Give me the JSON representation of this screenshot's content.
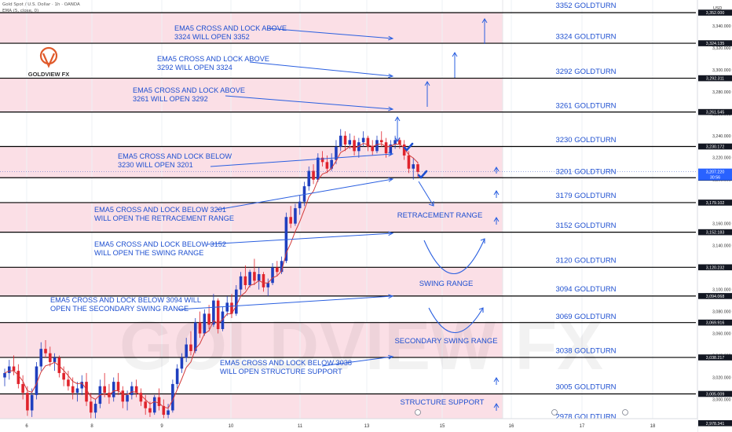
{
  "header": {
    "symbol": "Gold Spot / U.S. Dollar · 1h · OANDA",
    "indicator": "EMA (5, close, 0)"
  },
  "logo": {
    "text": "GOLDVIEW FX"
  },
  "watermark": "GOLDVIEW FX",
  "currency": "USD",
  "chart_data": {
    "type": "candlestick",
    "instrument": "Gold Spot / U.S. Dollar",
    "timeframe": "1h",
    "ylim": [
      2975,
      3355
    ],
    "x_ticks": [
      {
        "label": "6",
        "t": 0
      },
      {
        "label": "8",
        "t": 1
      },
      {
        "label": "9",
        "t": 2
      },
      {
        "label": "10",
        "t": 3
      },
      {
        "label": "11",
        "t": 4
      },
      {
        "label": "13",
        "t": 5
      },
      {
        "label": "15",
        "t": 6
      },
      {
        "label": "16",
        "t": 7
      },
      {
        "label": "17",
        "t": 8
      },
      {
        "label": "18",
        "t": 9
      }
    ],
    "y_ticks": [
      3340,
      3320,
      3300,
      3280,
      3260,
      3240,
      3220,
      3200,
      3180,
      3160,
      3140,
      3120,
      3100,
      3080,
      3060,
      3040,
      3020,
      3000
    ],
    "price_lines": [
      {
        "price": 3352.0,
        "label": "3,352.000"
      },
      {
        "price": 3324.135,
        "label": "3,324.135"
      },
      {
        "price": 3292.311,
        "label": "3,292.311"
      },
      {
        "price": 3261.545,
        "label": "3,261.545"
      },
      {
        "price": 3230.172,
        "label": "3,230.172"
      },
      {
        "price": 3201.744,
        "label": "3,201.744"
      },
      {
        "price": 3179.102,
        "label": "3,179.102"
      },
      {
        "price": 3152.183,
        "label": "3,152.183"
      },
      {
        "price": 3120.232,
        "label": "3,120.232"
      },
      {
        "price": 3094.068,
        "label": "3,094.068"
      },
      {
        "price": 3069.916,
        "label": "3,069.916"
      },
      {
        "price": 3038.217,
        "label": "3,038.217"
      },
      {
        "price": 3005.009,
        "label": "3,005.009"
      },
      {
        "price": 2978.341,
        "label": "2,978.341"
      }
    ],
    "current_price": {
      "price": 3207.22,
      "label": "3,207.220",
      "countdown": "30:56"
    },
    "pink_zones": [
      [
        3324.135,
        3352.0
      ],
      [
        3261.545,
        3292.311
      ],
      [
        3201.744,
        3230.172
      ],
      [
        3152.183,
        3179.102
      ],
      [
        3094.068,
        3120.232
      ],
      [
        3038.217,
        3069.916
      ],
      [
        2978.341,
        3005.009
      ]
    ],
    "goldturn_levels": [
      {
        "price": 3352,
        "label": "3352 GOLDTURN"
      },
      {
        "price": 3324,
        "label": "3324 GOLDTURN"
      },
      {
        "price": 3292,
        "label": "3292 GOLDTURN"
      },
      {
        "price": 3261,
        "label": "3261 GOLDTURN"
      },
      {
        "price": 3230,
        "label": "3230 GOLDTURN"
      },
      {
        "price": 3201,
        "label": "3201 GOLDTURN"
      },
      {
        "price": 3179,
        "label": "3179 GOLDTURN"
      },
      {
        "price": 3152,
        "label": "3152 GOLDTURN"
      },
      {
        "price": 3120,
        "label": "3120 GOLDTURN"
      },
      {
        "price": 3094,
        "label": "3094 GOLDTURN"
      },
      {
        "price": 3069,
        "label": "3069 GOLDTURN"
      },
      {
        "price": 3038,
        "label": "3038 GOLDTURN"
      },
      {
        "price": 3005,
        "label": "3005 GOLDTURN"
      },
      {
        "price": 2978,
        "label": "2978 GOLDTURN"
      }
    ],
    "annotations": [
      {
        "lines": [
          "EMA5 CROSS AND LOCK ABOVE",
          "3324 WILL OPEN 3352"
        ]
      },
      {
        "lines": [
          "EMA5 CROSS AND LOCK ABOVE",
          "3292 WILL OPEN 3324"
        ]
      },
      {
        "lines": [
          "EMA5 CROSS AND LOCK ABOVE",
          "3261 WILL OPEN 3292"
        ]
      },
      {
        "lines": [
          "EMA5 CROSS AND LOCK BELOW",
          "3230 WILL OPEN 3201"
        ]
      },
      {
        "lines": [
          "EMA5 CROSS AND LOCK BELOW 3201",
          "WILL OPEN THE RETRACEMENT RANGE"
        ]
      },
      {
        "lines": [
          "EMA5 CROSS AND LOCK BELOW 3152",
          "WILL OPEN THE SWING RANGE"
        ]
      },
      {
        "lines": [
          "EMA5 CROSS AND LOCK BELOW 3094 WILL",
          "OPEN THE SECONDARY SWING RANGE"
        ]
      },
      {
        "lines": [
          "EMA5 CROSS AND LOCK BELOW 3038",
          "WILL OPEN STRUCTURE SUPPORT"
        ]
      }
    ],
    "range_labels": [
      "RETRACEMENT RANGE",
      "SWING RANGE",
      "SECONDARY SWING RANGE",
      "STRUCTURE SUPPORT"
    ],
    "candles": [
      [
        3020,
        3028,
        3012,
        3024
      ],
      [
        3024,
        3036,
        3018,
        3030
      ],
      [
        3030,
        3040,
        3022,
        3026
      ],
      [
        3026,
        3032,
        3010,
        3014
      ],
      [
        3014,
        3022,
        3000,
        3006
      ],
      [
        3006,
        3012,
        2985,
        2990
      ],
      [
        2990,
        3010,
        2984,
        3004
      ],
      [
        3004,
        3034,
        3000,
        3030
      ],
      [
        3030,
        3052,
        3026,
        3046
      ],
      [
        3046,
        3054,
        3038,
        3042
      ],
      [
        3042,
        3048,
        3030,
        3034
      ],
      [
        3034,
        3042,
        3026,
        3038
      ],
      [
        3038,
        3040,
        3020,
        3024
      ],
      [
        3024,
        3030,
        3012,
        3018
      ],
      [
        3018,
        3026,
        3008,
        3012
      ],
      [
        3012,
        3020,
        3000,
        3006
      ],
      [
        3006,
        3016,
        2998,
        3010
      ],
      [
        3010,
        3022,
        3004,
        3016
      ],
      [
        3016,
        3024,
        2994,
        2998
      ],
      [
        2998,
        3006,
        2982,
        2988
      ],
      [
        2988,
        3000,
        2980,
        2996
      ],
      [
        2996,
        3018,
        2992,
        3012
      ],
      [
        3012,
        3024,
        3002,
        3006
      ],
      [
        3006,
        3014,
        2996,
        3002
      ],
      [
        3002,
        3020,
        2998,
        3016
      ],
      [
        3016,
        3024,
        3004,
        3008
      ],
      [
        3008,
        3012,
        2992,
        2998
      ],
      [
        2998,
        3008,
        2990,
        3004
      ],
      [
        3004,
        3016,
        3000,
        3012
      ],
      [
        3012,
        3018,
        3002,
        3006
      ],
      [
        3006,
        3010,
        2994,
        2998
      ],
      [
        2998,
        3004,
        2986,
        2992
      ],
      [
        2992,
        2998,
        2984,
        2988
      ],
      [
        2988,
        3004,
        2986,
        3002
      ],
      [
        3002,
        3010,
        2990,
        2994
      ],
      [
        2994,
        3000,
        2982,
        2986
      ],
      [
        2986,
        2996,
        2980,
        2990
      ],
      [
        2990,
        3018,
        2988,
        3014
      ],
      [
        3014,
        3032,
        3010,
        3028
      ],
      [
        3028,
        3042,
        3024,
        3038
      ],
      [
        3038,
        3056,
        3034,
        3050
      ],
      [
        3050,
        3062,
        3040,
        3044
      ],
      [
        3044,
        3074,
        3042,
        3070
      ],
      [
        3070,
        3080,
        3056,
        3060
      ],
      [
        3060,
        3082,
        3058,
        3078
      ],
      [
        3078,
        3086,
        3064,
        3068
      ],
      [
        3068,
        3096,
        3066,
        3090
      ],
      [
        3090,
        3092,
        3060,
        3064
      ],
      [
        3064,
        3084,
        3062,
        3080
      ],
      [
        3080,
        3094,
        3076,
        3088
      ],
      [
        3088,
        3096,
        3074,
        3078
      ],
      [
        3078,
        3104,
        3076,
        3100
      ],
      [
        3100,
        3116,
        3094,
        3112
      ],
      [
        3112,
        3122,
        3100,
        3104
      ],
      [
        3104,
        3118,
        3102,
        3116
      ],
      [
        3116,
        3128,
        3104,
        3108
      ],
      [
        3108,
        3120,
        3100,
        3114
      ],
      [
        3114,
        3116,
        3098,
        3102
      ],
      [
        3102,
        3110,
        3094,
        3106
      ],
      [
        3106,
        3124,
        3104,
        3120
      ],
      [
        3120,
        3126,
        3112,
        3116
      ],
      [
        3116,
        3130,
        3114,
        3126
      ],
      [
        3126,
        3170,
        3124,
        3166
      ],
      [
        3166,
        3176,
        3156,
        3160
      ],
      [
        3160,
        3178,
        3158,
        3174
      ],
      [
        3174,
        3186,
        3168,
        3180
      ],
      [
        3180,
        3198,
        3176,
        3194
      ],
      [
        3194,
        3212,
        3190,
        3208
      ],
      [
        3208,
        3214,
        3196,
        3200
      ],
      [
        3200,
        3224,
        3198,
        3220
      ],
      [
        3220,
        3226,
        3212,
        3216
      ],
      [
        3216,
        3222,
        3206,
        3210
      ],
      [
        3210,
        3224,
        3208,
        3218
      ],
      [
        3218,
        3236,
        3214,
        3230
      ],
      [
        3230,
        3246,
        3226,
        3240
      ],
      [
        3240,
        3244,
        3226,
        3232
      ],
      [
        3232,
        3242,
        3228,
        3236
      ],
      [
        3236,
        3240,
        3222,
        3226
      ],
      [
        3226,
        3238,
        3220,
        3234
      ],
      [
        3234,
        3244,
        3230,
        3238
      ],
      [
        3238,
        3240,
        3226,
        3230
      ],
      [
        3230,
        3236,
        3222,
        3226
      ],
      [
        3226,
        3240,
        3224,
        3236
      ],
      [
        3236,
        3244,
        3230,
        3234
      ],
      [
        3234,
        3238,
        3220,
        3224
      ],
      [
        3224,
        3236,
        3222,
        3232
      ],
      [
        3232,
        3240,
        3228,
        3236
      ],
      [
        3236,
        3238,
        3228,
        3232
      ],
      [
        3232,
        3236,
        3218,
        3222
      ],
      [
        3222,
        3226,
        3206,
        3210
      ],
      [
        3210,
        3220,
        3200,
        3214
      ],
      [
        3214,
        3216,
        3202,
        3207
      ]
    ]
  }
}
